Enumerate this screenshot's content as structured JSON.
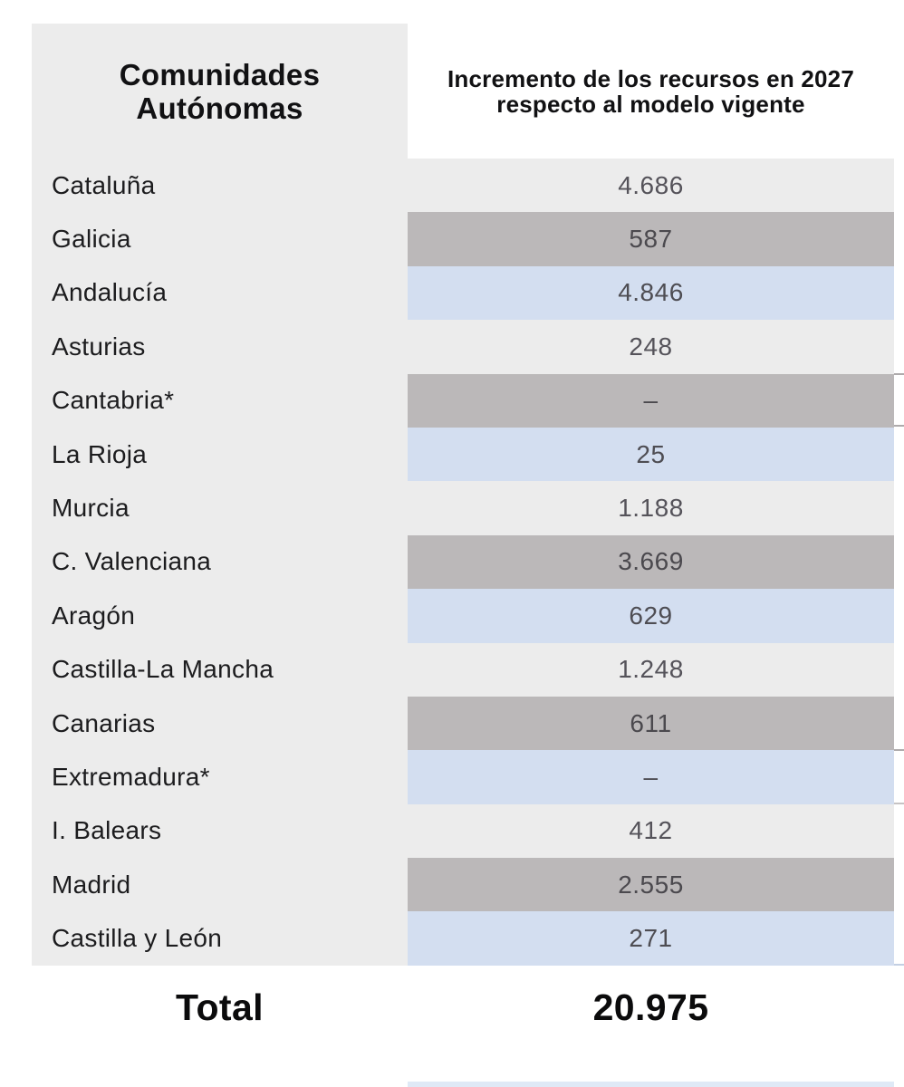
{
  "table": {
    "header": {
      "col1": "Comunidades Autónomas",
      "col2": "Incremento de los recursos en 2027 respecto al modelo vigente"
    },
    "rows": [
      {
        "label": "Cataluña",
        "value": "4.686"
      },
      {
        "label": "Galicia",
        "value": "587"
      },
      {
        "label": "Andalucía",
        "value": "4.846"
      },
      {
        "label": "Asturias",
        "value": "248"
      },
      {
        "label": "Cantabria*",
        "value": "–"
      },
      {
        "label": "La Rioja",
        "value": "25"
      },
      {
        "label": "Murcia",
        "value": "1.188"
      },
      {
        "label": "C. Valenciana",
        "value": "3.669"
      },
      {
        "label": "Aragón",
        "value": "629"
      },
      {
        "label": "Castilla-La Mancha",
        "value": "1.248"
      },
      {
        "label": "Canarias",
        "value": "611"
      },
      {
        "label": "Extremadura*",
        "value": "–"
      },
      {
        "label": "I. Balears",
        "value": "412"
      },
      {
        "label": "Madrid",
        "value": "2.555"
      },
      {
        "label": "Castilla y León",
        "value": "271"
      }
    ],
    "total": {
      "label": "Total",
      "value": "20.975"
    }
  },
  "colors": {
    "row_light_gray": "#ececec",
    "row_dark_gray": "#bbb8b9",
    "row_blue": "#d3def0",
    "label_text": "#1c1c1e",
    "value_text": "#55535a",
    "header_text": "#111113"
  },
  "chart_data": {
    "type": "table",
    "title": "",
    "columns": [
      "Comunidades Autónomas",
      "Incremento de los recursos en 2027 respecto al modelo vigente"
    ],
    "categories": [
      "Cataluña",
      "Galicia",
      "Andalucía",
      "Asturias",
      "Cantabria*",
      "La Rioja",
      "Murcia",
      "C. Valenciana",
      "Aragón",
      "Castilla-La Mancha",
      "Canarias",
      "Extremadura*",
      "I. Balears",
      "Madrid",
      "Castilla y León"
    ],
    "values": [
      4686,
      587,
      4846,
      248,
      null,
      25,
      1188,
      3669,
      629,
      1248,
      611,
      null,
      412,
      2555,
      271
    ],
    "display_values": [
      "4.686",
      "587",
      "4.846",
      "248",
      "–",
      "25",
      "1.188",
      "3.669",
      "629",
      "1.248",
      "611",
      "–",
      "412",
      "2.555",
      "271"
    ],
    "total": {
      "label": "Total",
      "value": 20975,
      "display": "20.975"
    },
    "notes": "Rows marked with * (Cantabria, Extremadura) show no value (–). Row background stripes cycle light-gray / dark-gray / blue."
  }
}
